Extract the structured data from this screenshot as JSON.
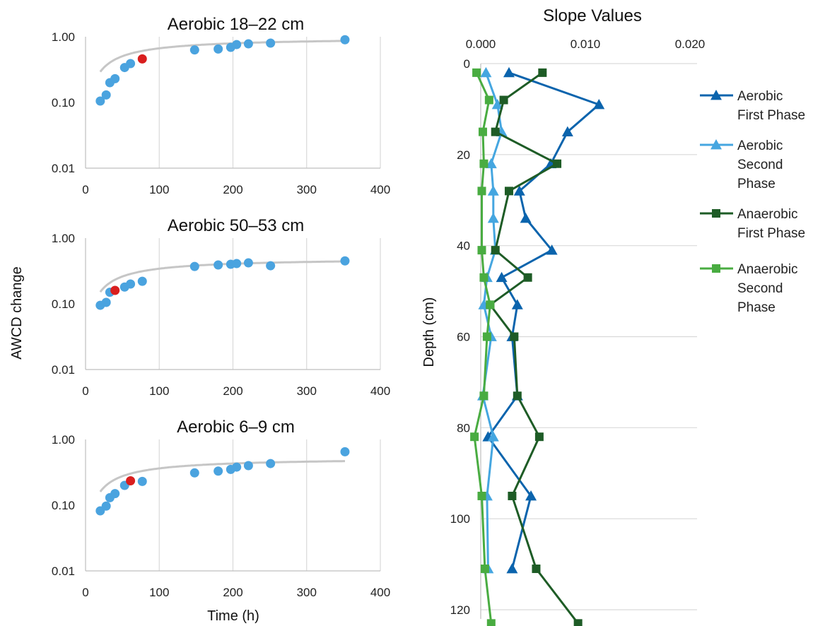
{
  "colors": {
    "point": "#4aa3df",
    "point_highlight": "#d91e1e",
    "fit": "#c6c6c6",
    "series": [
      "#0b64ad",
      "#45a6e0",
      "#1e5c26",
      "#49ac41"
    ]
  },
  "shared_labels": {
    "left_ylabel": "AWCD change",
    "left_xlabel": "Time (h)"
  },
  "chart_data": [
    {
      "type": "scatter",
      "title": "Aerobic 18–22 cm",
      "y_scale": "log",
      "xlim": [
        0,
        400
      ],
      "ylim": [
        0.01,
        1.0
      ],
      "x_ticks": [
        "0",
        "100",
        "200",
        "300",
        "400"
      ],
      "y_ticks": [
        "1.00",
        "0.10",
        "0.01"
      ],
      "points": [
        {
          "x": 20,
          "y": 0.105
        },
        {
          "x": 28,
          "y": 0.13
        },
        {
          "x": 33,
          "y": 0.2
        },
        {
          "x": 40,
          "y": 0.23
        },
        {
          "x": 53,
          "y": 0.34
        },
        {
          "x": 61,
          "y": 0.39
        },
        {
          "x": 77,
          "y": 0.46,
          "highlight": true
        },
        {
          "x": 148,
          "y": 0.63
        },
        {
          "x": 180,
          "y": 0.65
        },
        {
          "x": 197,
          "y": 0.69
        },
        {
          "x": 205,
          "y": 0.76
        },
        {
          "x": 221,
          "y": 0.78
        },
        {
          "x": 251,
          "y": 0.8
        },
        {
          "x": 352,
          "y": 0.9
        }
      ],
      "fit": {
        "a": 0.98,
        "b": 47
      }
    },
    {
      "type": "scatter",
      "title": "Aerobic 50–53 cm",
      "y_scale": "log",
      "xlim": [
        0,
        400
      ],
      "ylim": [
        0.01,
        1.0
      ],
      "x_ticks": [
        "0",
        "100",
        "200",
        "300",
        "400"
      ],
      "y_ticks": [
        "1.00",
        "0.10",
        "0.01"
      ],
      "points": [
        {
          "x": 20,
          "y": 0.095
        },
        {
          "x": 28,
          "y": 0.105
        },
        {
          "x": 33,
          "y": 0.15
        },
        {
          "x": 40,
          "y": 0.16,
          "highlight": true
        },
        {
          "x": 53,
          "y": 0.18
        },
        {
          "x": 61,
          "y": 0.2
        },
        {
          "x": 77,
          "y": 0.22
        },
        {
          "x": 148,
          "y": 0.37
        },
        {
          "x": 180,
          "y": 0.39
        },
        {
          "x": 197,
          "y": 0.4
        },
        {
          "x": 205,
          "y": 0.41
        },
        {
          "x": 221,
          "y": 0.42
        },
        {
          "x": 251,
          "y": 0.38
        },
        {
          "x": 352,
          "y": 0.45
        }
      ],
      "fit": {
        "a": 0.5,
        "b": 46
      }
    },
    {
      "type": "scatter",
      "title": "Aerobic 6–9 cm",
      "y_scale": "log",
      "xlim": [
        0,
        400
      ],
      "ylim": [
        0.01,
        1.0
      ],
      "x_ticks": [
        "0",
        "100",
        "200",
        "300",
        "400"
      ],
      "y_ticks": [
        "1.00",
        "0.10",
        "0.01"
      ],
      "points": [
        {
          "x": 20,
          "y": 0.082
        },
        {
          "x": 28,
          "y": 0.097
        },
        {
          "x": 33,
          "y": 0.13
        },
        {
          "x": 40,
          "y": 0.15
        },
        {
          "x": 53,
          "y": 0.2
        },
        {
          "x": 61,
          "y": 0.235,
          "highlight": true
        },
        {
          "x": 77,
          "y": 0.23
        },
        {
          "x": 148,
          "y": 0.31
        },
        {
          "x": 180,
          "y": 0.33
        },
        {
          "x": 197,
          "y": 0.35
        },
        {
          "x": 205,
          "y": 0.38
        },
        {
          "x": 221,
          "y": 0.4
        },
        {
          "x": 251,
          "y": 0.43
        },
        {
          "x": 352,
          "y": 0.65
        }
      ],
      "fit": {
        "a": 0.53,
        "b": 46
      }
    },
    {
      "type": "line",
      "title": "Slope Values",
      "xlabel": "",
      "ylabel": "Depth (cm)",
      "xlim": [
        -0.001,
        0.02
      ],
      "ylim": [
        0,
        125
      ],
      "y_reversed": true,
      "x_ticks": [
        0.0,
        0.01,
        0.02
      ],
      "x_tick_labels": [
        "0.000",
        "0.010",
        "0.020"
      ],
      "y_ticks": [
        0,
        20,
        40,
        60,
        80,
        100,
        120
      ],
      "y_tick_labels": [
        "0",
        "20",
        "40",
        "60",
        "80",
        "100",
        "120"
      ],
      "legend_position": "right",
      "series": [
        {
          "name": [
            "Aerobic",
            "First Phase"
          ],
          "marker": "triangle",
          "points": [
            {
              "x": 0.0027,
              "y": 2
            },
            {
              "x": 0.0113,
              "y": 9
            },
            {
              "x": 0.0083,
              "y": 15
            },
            {
              "x": 0.0067,
              "y": 22
            },
            {
              "x": 0.0037,
              "y": 28
            },
            {
              "x": 0.0043,
              "y": 34
            },
            {
              "x": 0.0068,
              "y": 41
            },
            {
              "x": 0.002,
              "y": 47
            },
            {
              "x": 0.0035,
              "y": 53
            },
            {
              "x": 0.003,
              "y": 60
            },
            {
              "x": 0.0035,
              "y": 73
            },
            {
              "x": 0.0007,
              "y": 82
            },
            {
              "x": 0.0048,
              "y": 95
            },
            {
              "x": 0.003,
              "y": 111
            }
          ]
        },
        {
          "name": [
            "Aerobic",
            "Second",
            "Phase"
          ],
          "marker": "triangle",
          "points": [
            {
              "x": 0.0005,
              "y": 2
            },
            {
              "x": 0.0016,
              "y": 9
            },
            {
              "x": 0.002,
              "y": 15
            },
            {
              "x": 0.001,
              "y": 22
            },
            {
              "x": 0.0012,
              "y": 28
            },
            {
              "x": 0.0012,
              "y": 34
            },
            {
              "x": 0.0014,
              "y": 41
            },
            {
              "x": 0.0006,
              "y": 47
            },
            {
              "x": 0.0003,
              "y": 53
            },
            {
              "x": 0.001,
              "y": 60
            },
            {
              "x": 0.0002,
              "y": 73
            },
            {
              "x": 0.0012,
              "y": 82
            },
            {
              "x": 0.0006,
              "y": 95
            },
            {
              "x": 0.0007,
              "y": 111
            }
          ]
        },
        {
          "name": [
            "Anaerobic",
            "First Phase"
          ],
          "marker": "square",
          "points": [
            {
              "x": 0.0059,
              "y": 2
            },
            {
              "x": 0.0022,
              "y": 8
            },
            {
              "x": 0.0014,
              "y": 15
            },
            {
              "x": 0.0073,
              "y": 22
            },
            {
              "x": 0.0027,
              "y": 28
            },
            {
              "x": 0.0014,
              "y": 41
            },
            {
              "x": 0.0045,
              "y": 47
            },
            {
              "x": 0.0009,
              "y": 53
            },
            {
              "x": 0.0032,
              "y": 60
            },
            {
              "x": 0.0035,
              "y": 73
            },
            {
              "x": 0.0056,
              "y": 82
            },
            {
              "x": 0.003,
              "y": 95
            },
            {
              "x": 0.0053,
              "y": 111
            },
            {
              "x": 0.0093,
              "y": 123
            }
          ]
        },
        {
          "name": [
            "Anaerobic",
            "Second",
            "Phase"
          ],
          "marker": "square",
          "points": [
            {
              "x": -0.0004,
              "y": 2
            },
            {
              "x": 0.0008,
              "y": 8
            },
            {
              "x": 0.0002,
              "y": 15
            },
            {
              "x": 0.0003,
              "y": 22
            },
            {
              "x": 0.0001,
              "y": 28
            },
            {
              "x": 0.0001,
              "y": 41
            },
            {
              "x": 0.0003,
              "y": 47
            },
            {
              "x": 0.0009,
              "y": 53
            },
            {
              "x": 0.0006,
              "y": 60
            },
            {
              "x": 0.0003,
              "y": 73
            },
            {
              "x": -0.0006,
              "y": 82
            },
            {
              "x": 0.0001,
              "y": 95
            },
            {
              "x": 0.0004,
              "y": 111
            },
            {
              "x": 0.001,
              "y": 123
            }
          ]
        }
      ]
    }
  ]
}
